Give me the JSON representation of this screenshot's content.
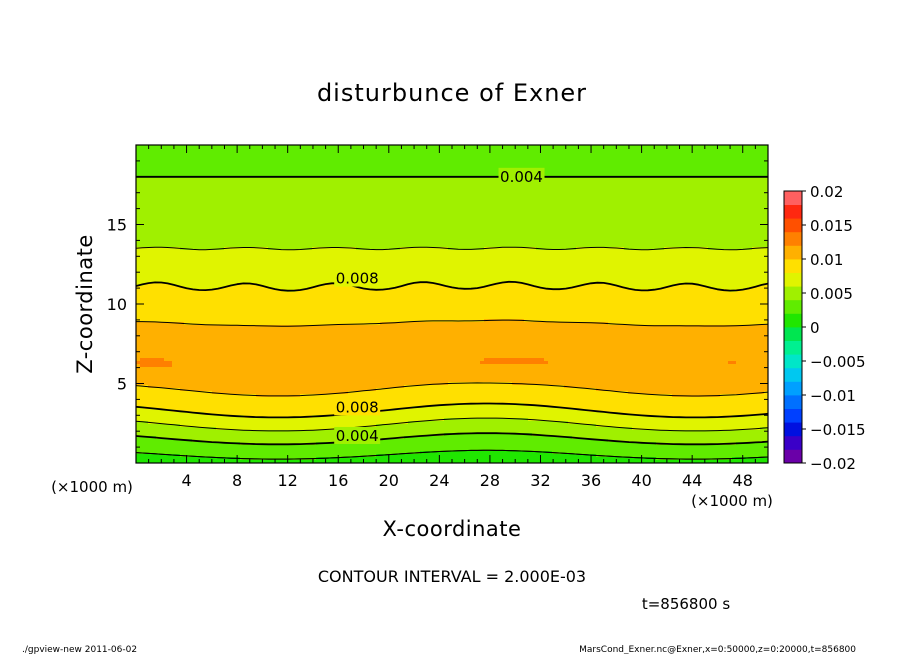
{
  "chart_data": {
    "type": "contour",
    "title": "disturbunce of Exner",
    "xlabel": "X-coordinate",
    "ylabel": "Z-coordinate",
    "x_unit_left": "(×1000 m)",
    "x_unit_right": "(×1000 m)",
    "xlim": [
      0,
      50
    ],
    "ylim": [
      0,
      20
    ],
    "x_ticks": [
      4,
      8,
      12,
      16,
      20,
      24,
      28,
      32,
      36,
      40,
      44,
      48
    ],
    "x_tick_labels": [
      "4",
      "8",
      "12",
      "16",
      "20",
      "24",
      "28",
      "32",
      "36",
      "40",
      "44",
      "48"
    ],
    "y_ticks": [
      5,
      10,
      15
    ],
    "y_tick_labels": [
      "5",
      "10",
      "15"
    ],
    "contour_interval_text": "CONTOUR INTERVAL = 2.000E-03",
    "time_text": "t=856800 s",
    "colorbar": {
      "min": -0.02,
      "max": 0.02,
      "tick_values": [
        0.02,
        0.015,
        0.01,
        0.005,
        0,
        -0.005,
        -0.01,
        -0.015,
        -0.02
      ],
      "tick_labels": [
        "0.02",
        "0.015",
        "0.01",
        "0.005",
        "0",
        "−0.005",
        "−0.01",
        "−0.015",
        "−0.02"
      ],
      "levels": [
        -0.02,
        -0.018,
        -0.016,
        -0.014,
        -0.012,
        -0.01,
        -0.008,
        -0.006,
        -0.004,
        -0.002,
        0,
        0.002,
        0.004,
        0.006,
        0.008,
        0.01,
        0.012,
        0.014,
        0.016,
        0.018,
        0.02
      ],
      "colors": [
        "#6a00a8",
        "#3a00c8",
        "#0010e0",
        "#0040ff",
        "#0070ff",
        "#00a0ff",
        "#00c8f0",
        "#00e6c8",
        "#00f090",
        "#00e650",
        "#20e600",
        "#60ec00",
        "#a0f000",
        "#e0f400",
        "#ffe000",
        "#ffb000",
        "#ff8000",
        "#ff5000",
        "#ff2810",
        "#ff6060"
      ]
    },
    "field_profile": {
      "z": [
        0,
        1,
        2,
        3,
        4,
        5,
        6,
        7,
        8,
        9,
        10,
        11,
        12,
        13,
        14,
        15,
        16,
        17,
        18,
        19,
        20
      ],
      "values": [
        0.001,
        0.003,
        0.005,
        0.0075,
        0.0092,
        0.0104,
        0.0113,
        0.011,
        0.0104,
        0.0099,
        0.0092,
        0.0081,
        0.0071,
        0.0063,
        0.0057,
        0.0052,
        0.0047,
        0.0043,
        0.004,
        0.0037,
        0.0035
      ]
    },
    "contour_labels": [
      {
        "text": "0.004",
        "x": 30.5,
        "z": 18.0
      },
      {
        "text": "0.008",
        "x": 17.5,
        "z": 11.6
      },
      {
        "text": "0.008",
        "x": 17.5,
        "z": 3.5
      },
      {
        "text": "0.004",
        "x": 17.5,
        "z": 1.7
      }
    ]
  },
  "footer": {
    "left": "./gpview-new   2011-06-02",
    "right": "MarsCond_Exner.nc@Exner,x=0:50000,z=0:20000,t=856800"
  }
}
